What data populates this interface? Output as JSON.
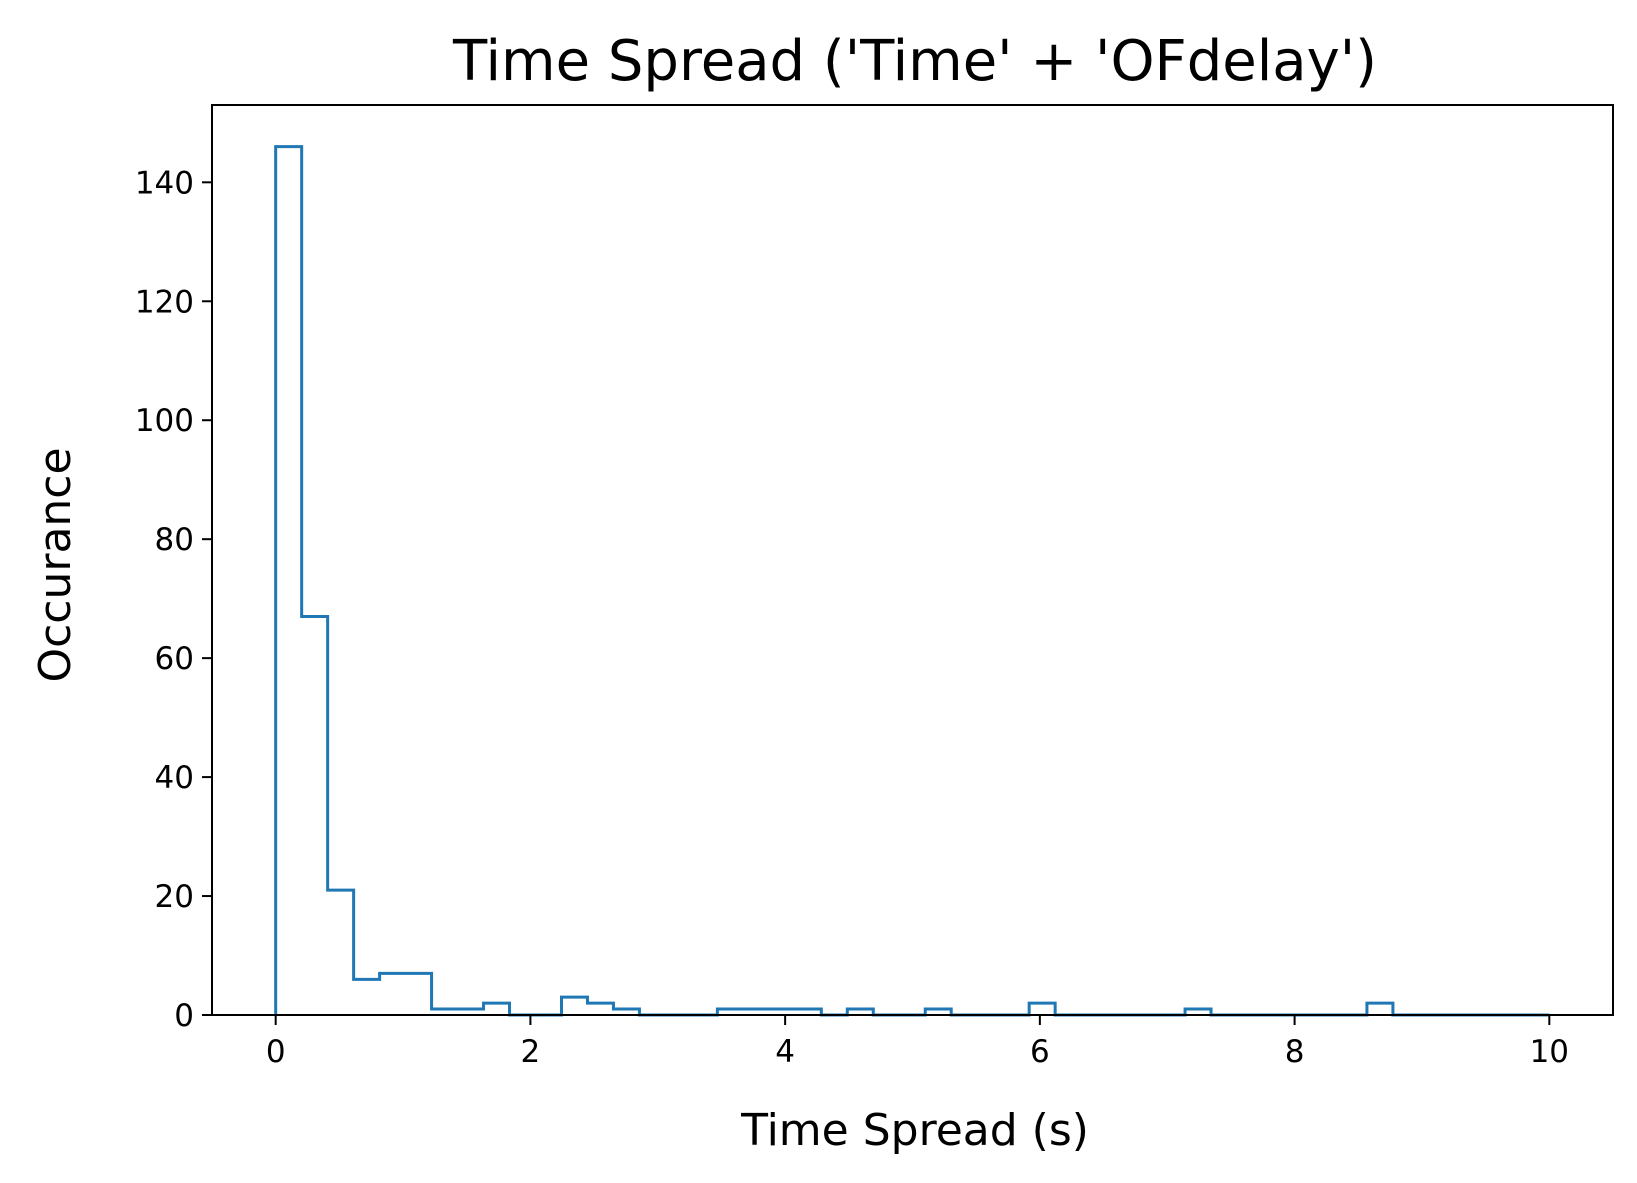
{
  "chart_data": {
    "type": "histogram",
    "histtype": "step",
    "title": "Time Spread ('Time' + 'OFdelay')",
    "xlabel": "Time Spread (s)",
    "ylabel": "Occurance",
    "xlim": [
      -0.5,
      10.5
    ],
    "ylim": [
      0,
      153
    ],
    "xticks": [
      0,
      2,
      4,
      6,
      8,
      10
    ],
    "yticks": [
      0,
      20,
      40,
      60,
      80,
      100,
      120,
      140
    ],
    "grid": false,
    "legend": "none",
    "color": "#1f77b4",
    "bin_edges": [
      0.0,
      0.204,
      0.408,
      0.612,
      0.816,
      1.02,
      1.224,
      1.428,
      1.632,
      1.836,
      2.04,
      2.244,
      2.448,
      2.652,
      2.856,
      3.06,
      3.264,
      3.468,
      3.672,
      3.876,
      4.08,
      4.284,
      4.488,
      4.692,
      4.896,
      5.1,
      5.304,
      5.508,
      5.712,
      5.916,
      6.12,
      6.324,
      6.528,
      6.732,
      6.936,
      7.14,
      7.344,
      7.548,
      7.752,
      7.956,
      8.16,
      8.364,
      8.568,
      8.772,
      8.976,
      9.18,
      9.384,
      9.588,
      9.792,
      10.0
    ],
    "counts": [
      146,
      67,
      21,
      6,
      7,
      7,
      1,
      1,
      2,
      0,
      0,
      3,
      2,
      1,
      0,
      0,
      0,
      1,
      1,
      1,
      1,
      0,
      1,
      0,
      0,
      1,
      0,
      0,
      0,
      2,
      0,
      0,
      0,
      0,
      0,
      1,
      0,
      0,
      0,
      0,
      0,
      0,
      2,
      0,
      0,
      0,
      0,
      0,
      0
    ]
  }
}
